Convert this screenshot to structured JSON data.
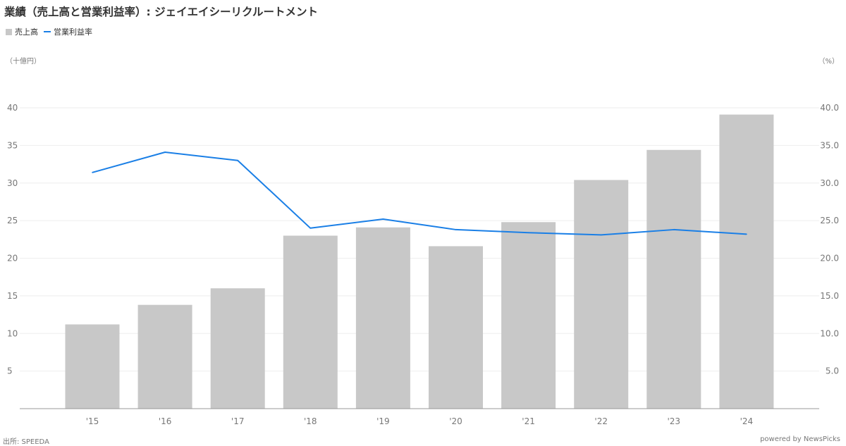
{
  "title": "業績（売上高と営業利益率）: ジェイエイシーリクルートメント",
  "unit_left": "（十億円）",
  "unit_right": "（%）",
  "footer": {
    "source": "出所: SPEEDA",
    "powered": "powered by NewsPicks"
  },
  "colors": {
    "bar": "#c8c8c8",
    "line": "#1a7fe6"
  },
  "chart_data": {
    "type": "bar",
    "categories": [
      "'15",
      "'16",
      "'17",
      "'18",
      "'19",
      "'20",
      "'21",
      "'22",
      "'23",
      "'24"
    ],
    "series": [
      {
        "name": "売上高",
        "type": "bar",
        "axis": "left",
        "values": [
          11.2,
          13.8,
          16.0,
          23.0,
          24.1,
          21.6,
          24.8,
          30.4,
          34.4,
          39.1
        ]
      },
      {
        "name": "営業利益率",
        "type": "line",
        "axis": "right",
        "values": [
          31.4,
          34.1,
          33.0,
          24.0,
          25.2,
          23.8,
          23.4,
          23.1,
          23.8,
          23.2
        ]
      }
    ],
    "y_left": {
      "ticks": [
        "5",
        "10",
        "15",
        "20",
        "25",
        "30",
        "35",
        "40"
      ],
      "ylim": [
        0,
        40
      ]
    },
    "y_right": {
      "ticks": [
        "5.0",
        "10.0",
        "15.0",
        "20.0",
        "25.0",
        "30.0",
        "35.0",
        "40.0"
      ],
      "ylim": [
        0,
        40
      ]
    },
    "grid": true,
    "legend": "top-left"
  }
}
